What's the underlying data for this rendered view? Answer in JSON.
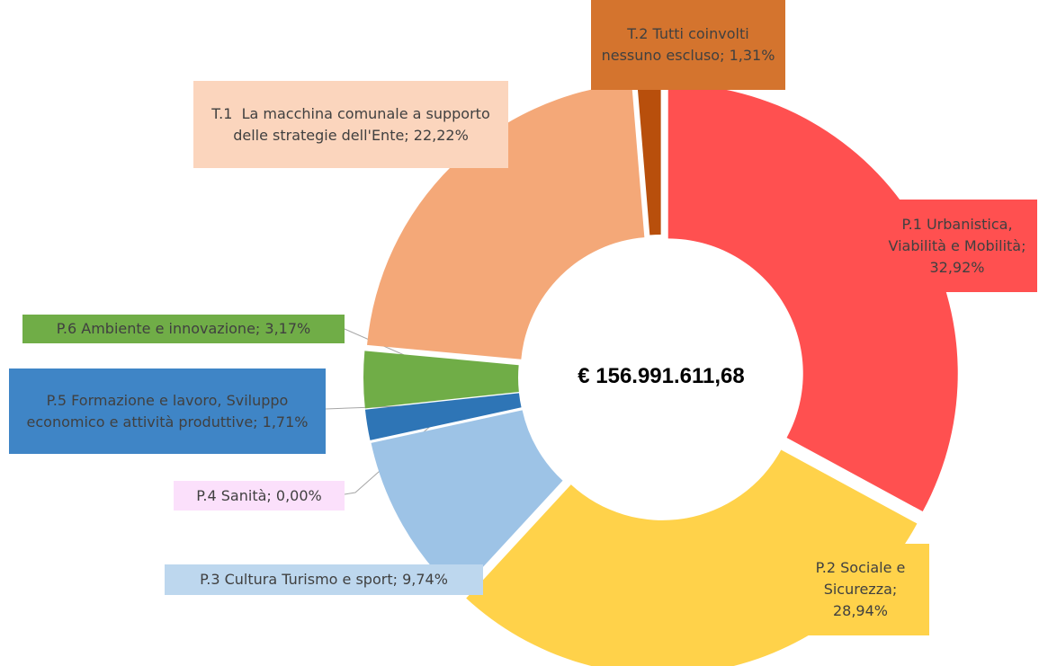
{
  "chart_data": {
    "type": "donut",
    "categories": [
      "P.1 Urbanistica, Viabilità e Mobilità;",
      "P.2 Sociale e Sicurezza;",
      "P.3 Cultura Turismo e sport;",
      "P.4 Sanità;",
      "P.5 Formazione e lavoro, Sviluppo economico e attività produttive;",
      "P.6 Ambiente e innovazione;",
      "T.1  La macchina comunale a supporto delle strategie dell'Ente;",
      "T.2 Tutti coinvolti nessuno escluso;"
    ],
    "values": [
      32.92,
      28.94,
      9.74,
      0.0,
      1.71,
      3.17,
      22.22,
      1.31
    ],
    "value_labels": [
      "32,92%",
      "28,94%",
      "9,74%",
      "0,00%",
      "1,71%",
      "3,17%",
      "22,22%",
      "1,31%"
    ],
    "colors": [
      "#ff5050",
      "#ffd24a",
      "#9dc3e6",
      "#f8c8f8",
      "#2e75b6",
      "#70ad47",
      "#f4a878",
      "#b84f0c"
    ],
    "center_label": "€ 156.991.611,68"
  }
}
